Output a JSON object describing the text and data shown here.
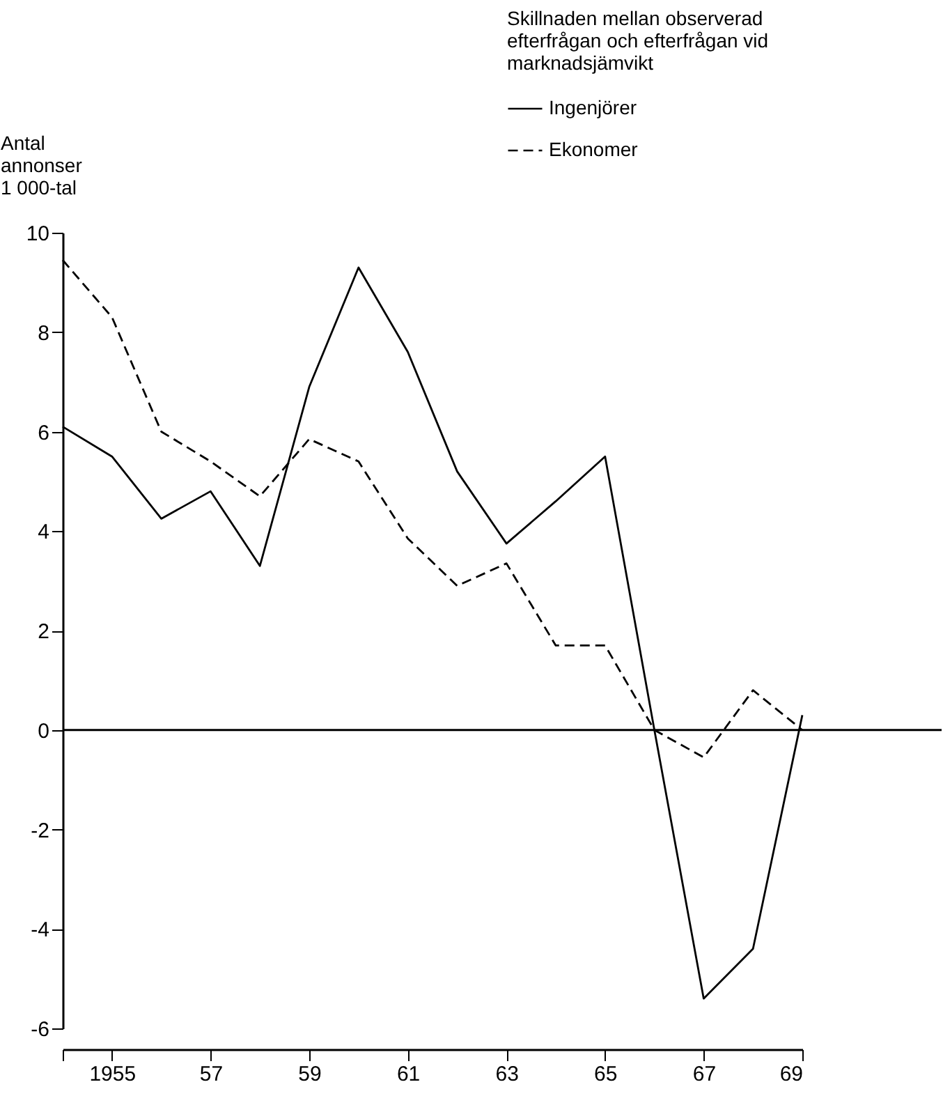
{
  "chart_data": {
    "type": "line",
    "legend_title": "Skillnaden mellan observerad\nefterfrågan och efterfrågan vid\nmarknadsjämvikt",
    "ylabel": "Antal\nannonser\n1 000-tal",
    "x": [
      1954,
      1955,
      1956,
      1957,
      1958,
      1959,
      1960,
      1961,
      1962,
      1963,
      1964,
      1965,
      1966,
      1967,
      1968,
      1969
    ],
    "series": [
      {
        "name": "Ingenjörer",
        "color": "#000000",
        "line_style": "solid",
        "values": [
          6.1,
          5.5,
          4.25,
          4.8,
          3.3,
          6.9,
          9.3,
          7.6,
          5.2,
          3.75,
          4.6,
          5.5,
          0,
          -5.4,
          -4.4,
          0.3
        ]
      },
      {
        "name": "Ekonomer",
        "color": "#000000",
        "line_style": "dashed",
        "values": [
          9.45,
          8.3,
          6.0,
          5.4,
          4.7,
          5.85,
          5.4,
          3.85,
          2.9,
          3.35,
          1.7,
          1.7,
          0,
          -0.55,
          0.8,
          0
        ]
      }
    ],
    "xlim": [
      1954,
      1969
    ],
    "xticks": [
      {
        "value": 1954,
        "label": null
      },
      1955,
      {
        "value": 1957,
        "label": "57"
      },
      {
        "value": 1959,
        "label": "59"
      },
      {
        "value": 1961,
        "label": "61"
      },
      {
        "value": 1963,
        "label": "63"
      },
      {
        "value": 1965,
        "label": "65"
      },
      {
        "value": 1967,
        "label": "67"
      },
      {
        "value": 1969,
        "label": "69"
      }
    ],
    "ylim": [
      -6,
      10
    ],
    "yticks": [
      -6,
      -4,
      -2,
      0,
      2,
      4,
      6,
      8,
      10
    ],
    "ref_lines": [
      {
        "axis": "y",
        "value": 0,
        "label": null
      }
    ],
    "grid": false,
    "legend": "top right",
    "marker": "none"
  }
}
